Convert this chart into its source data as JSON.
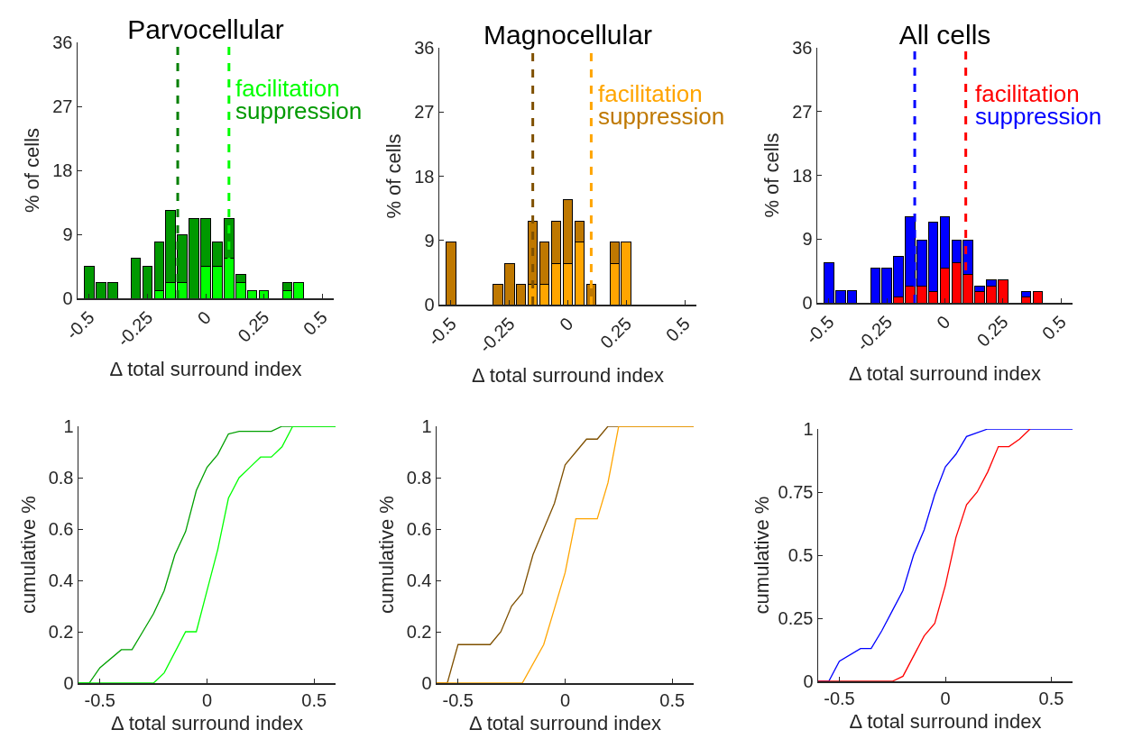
{
  "chart_data": [
    {
      "type": "bar",
      "stacked": true,
      "title": "Parvocellular",
      "xlabel": "Δ total surround index",
      "ylabel": "% of cells",
      "legend": "top right",
      "x": [
        -0.5,
        -0.45,
        -0.4,
        -0.35,
        -0.3,
        -0.25,
        -0.2,
        -0.15,
        -0.1,
        -0.05,
        0,
        0.05,
        0.1,
        0.15,
        0.2,
        0.25,
        0.3,
        0.35,
        0.4,
        0.45,
        0.5
      ],
      "series": [
        {
          "name": "facilitation",
          "color": "#00ff00",
          "values": [
            0,
            0,
            0,
            0,
            0,
            0,
            1.1,
            2.2,
            2.2,
            0,
            4.5,
            4.5,
            5.6,
            2.2,
            1.1,
            1.1,
            0,
            1.1,
            2.2,
            0,
            0
          ]
        },
        {
          "name": "suppression",
          "color": "#009900",
          "values": [
            4.5,
            2.2,
            2.2,
            0,
            5.6,
            4.5,
            6.8,
            10.2,
            6.8,
            11.2,
            6.7,
            3.4,
            5.6,
            1.2,
            0,
            0,
            0,
            1.1,
            0,
            0,
            0
          ]
        }
      ],
      "xlim": [
        -0.55,
        0.55
      ],
      "xticks": [
        -0.5,
        -0.25,
        0,
        0.25,
        0.5
      ],
      "ylim": [
        0,
        36
      ],
      "yticks": [
        0,
        9,
        18,
        27,
        36
      ],
      "ref_lines": [
        {
          "axis": "x",
          "value": -0.12,
          "color": "#007f00",
          "line_style": "dashed"
        },
        {
          "axis": "x",
          "value": 0.1,
          "color": "#00ff00",
          "line_style": "dashed"
        }
      ]
    },
    {
      "type": "bar",
      "stacked": true,
      "title": "Magnocellular",
      "xlabel": "Δ total surround index",
      "ylabel": "% of cells",
      "legend": "top right",
      "x": [
        -0.5,
        -0.45,
        -0.4,
        -0.35,
        -0.3,
        -0.25,
        -0.2,
        -0.15,
        -0.1,
        -0.05,
        0,
        0.05,
        0.1,
        0.15,
        0.2,
        0.25,
        0.3,
        0.35,
        0.4,
        0.45,
        0.5
      ],
      "series": [
        {
          "name": "facilitation",
          "color": "#ffa500",
          "values": [
            0,
            0,
            0,
            0,
            0,
            0,
            0,
            2.9,
            2.9,
            5.8,
            5.8,
            8.8,
            0,
            0,
            5.8,
            8.8,
            0,
            0,
            0,
            0,
            0
          ]
        },
        {
          "name": "suppression",
          "color": "#bf7800",
          "values": [
            8.8,
            0,
            0,
            0,
            2.9,
            5.8,
            2.9,
            8.8,
            5.9,
            5.9,
            8.9,
            2.9,
            2.9,
            0,
            3,
            0,
            0,
            0,
            0,
            0,
            0
          ]
        }
      ],
      "xlim": [
        -0.55,
        0.55
      ],
      "xticks": [
        -0.5,
        -0.25,
        0,
        0.25,
        0.5
      ],
      "ylim": [
        0,
        36
      ],
      "yticks": [
        0,
        9,
        18,
        27,
        36
      ],
      "ref_lines": [
        {
          "axis": "x",
          "value": -0.15,
          "color": "#7f5000",
          "line_style": "dashed"
        },
        {
          "axis": "x",
          "value": 0.1,
          "color": "#ffa500",
          "line_style": "dashed"
        }
      ]
    },
    {
      "type": "bar",
      "stacked": true,
      "title": "All cells",
      "xlabel": "Δ total surround index",
      "ylabel": "% of cells",
      "legend": "top right",
      "x": [
        -0.5,
        -0.45,
        -0.4,
        -0.35,
        -0.3,
        -0.25,
        -0.2,
        -0.15,
        -0.1,
        -0.05,
        0,
        0.05,
        0.1,
        0.15,
        0.2,
        0.25,
        0.3,
        0.35,
        0.4,
        0.45,
        0.5
      ],
      "series": [
        {
          "name": "facilitation",
          "color": "#ff0000",
          "values": [
            0,
            0,
            0,
            0,
            0,
            0,
            0.8,
            2.4,
            2.4,
            1.6,
            4.9,
            5.7,
            4,
            1.6,
            2.4,
            3.3,
            0,
            0.8,
            1.6,
            0,
            0
          ]
        },
        {
          "name": "suppression",
          "color": "#0000ff",
          "values": [
            5.7,
            1.7,
            1.7,
            0,
            4.9,
            4.9,
            5.7,
            9.8,
            6.5,
            9.8,
            7.3,
            3.2,
            4.9,
            0.8,
            0.9,
            0,
            0,
            0.8,
            0,
            0,
            0
          ]
        }
      ],
      "xlim": [
        -0.55,
        0.55
      ],
      "xticks": [
        -0.5,
        -0.25,
        0,
        0.25,
        0.5
      ],
      "ylim": [
        0,
        36
      ],
      "yticks": [
        0,
        9,
        18,
        27,
        36
      ],
      "ref_lines": [
        {
          "axis": "x",
          "value": -0.13,
          "color": "#0000ff",
          "line_style": "dashed"
        },
        {
          "axis": "x",
          "value": 0.09,
          "color": "#ff0000",
          "line_style": "dashed"
        }
      ]
    },
    {
      "type": "line",
      "xlabel": "Δ total surround index",
      "ylabel": "cumulative %",
      "series": [
        {
          "color": "#00a000",
          "x": [
            -0.6,
            -0.55,
            -0.5,
            -0.4,
            -0.35,
            -0.3,
            -0.25,
            -0.2,
            -0.15,
            -0.1,
            -0.05,
            0,
            0.05,
            0.1,
            0.15,
            0.3,
            0.35,
            0.6
          ],
          "values": [
            0,
            0,
            0.06,
            0.13,
            0.13,
            0.2,
            0.27,
            0.36,
            0.5,
            0.59,
            0.75,
            0.84,
            0.89,
            0.97,
            0.98,
            0.98,
            1,
            1
          ]
        },
        {
          "color": "#00ff00",
          "x": [
            -0.6,
            -0.25,
            -0.2,
            -0.1,
            -0.05,
            0,
            0.05,
            0.1,
            0.15,
            0.2,
            0.25,
            0.3,
            0.35,
            0.4,
            0.6
          ],
          "values": [
            0,
            0,
            0.04,
            0.2,
            0.2,
            0.36,
            0.52,
            0.72,
            0.8,
            0.84,
            0.88,
            0.88,
            0.92,
            1,
            1
          ]
        }
      ],
      "xlim": [
        -0.6,
        0.6
      ],
      "xticks": [
        -0.5,
        0,
        0.5
      ],
      "ylim": [
        0,
        1
      ],
      "yticks": [
        0,
        0.2,
        0.4,
        0.6,
        0.8,
        1
      ]
    },
    {
      "type": "line",
      "xlabel": "Δ total surround index",
      "ylabel": "cumulative %",
      "series": [
        {
          "color": "#7f5000",
          "x": [
            -0.6,
            -0.55,
            -0.5,
            -0.35,
            -0.3,
            -0.25,
            -0.2,
            -0.15,
            -0.1,
            -0.05,
            0,
            0.05,
            0.1,
            0.15,
            0.2,
            0.6
          ],
          "values": [
            0,
            0,
            0.15,
            0.15,
            0.2,
            0.3,
            0.35,
            0.5,
            0.6,
            0.7,
            0.85,
            0.9,
            0.95,
            0.95,
            1,
            1
          ]
        },
        {
          "color": "#ffa500",
          "x": [
            -0.6,
            -0.2,
            -0.1,
            -0.05,
            0,
            0.05,
            0.15,
            0.2,
            0.25,
            0.6
          ],
          "values": [
            0,
            0,
            0.15,
            0.29,
            0.43,
            0.64,
            0.64,
            0.78,
            1,
            1
          ]
        }
      ],
      "xlim": [
        -0.6,
        0.6
      ],
      "xticks": [
        -0.5,
        0,
        0.5
      ],
      "ylim": [
        0,
        1
      ],
      "yticks": [
        0,
        0.2,
        0.4,
        0.6,
        0.8,
        1
      ]
    },
    {
      "type": "line",
      "xlabel": "Δ total surround index",
      "ylabel": "cumulative %",
      "series": [
        {
          "color": "#0000ff",
          "x": [
            -0.6,
            -0.55,
            -0.5,
            -0.4,
            -0.35,
            -0.3,
            -0.25,
            -0.2,
            -0.15,
            -0.1,
            -0.05,
            0,
            0.05,
            0.1,
            0.2,
            0.3,
            0.35,
            0.6
          ],
          "values": [
            0,
            0,
            0.08,
            0.13,
            0.13,
            0.2,
            0.28,
            0.36,
            0.5,
            0.6,
            0.74,
            0.85,
            0.9,
            0.97,
            1,
            1,
            1,
            1
          ]
        },
        {
          "color": "#ff0000",
          "x": [
            -0.6,
            -0.25,
            -0.2,
            -0.1,
            -0.05,
            0,
            0.05,
            0.1,
            0.15,
            0.2,
            0.25,
            0.3,
            0.35,
            0.4
          ],
          "values": [
            0,
            0,
            0.02,
            0.18,
            0.23,
            0.38,
            0.57,
            0.7,
            0.75,
            0.83,
            0.93,
            0.93,
            0.96,
            1
          ]
        }
      ],
      "xlim": [
        -0.6,
        0.6
      ],
      "xticks": [
        -0.5,
        0,
        0.5
      ],
      "ylim": [
        0,
        1
      ],
      "yticks": [
        0,
        0.25,
        0.5,
        0.75,
        1
      ]
    }
  ]
}
